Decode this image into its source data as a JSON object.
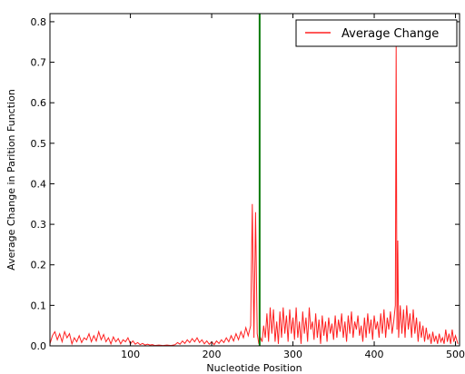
{
  "chart_data": {
    "type": "line",
    "xlabel": "Nucleotide Position",
    "ylabel": "Average Change in Parition Function",
    "xlim": [
      1,
      505
    ],
    "ylim": [
      0,
      0.82
    ],
    "xticks": [
      100,
      200,
      300,
      400,
      500
    ],
    "yticks": [
      0.0,
      0.1,
      0.2,
      0.3,
      0.4,
      0.5,
      0.6,
      0.7,
      0.8
    ],
    "xtick_labels": [
      "100",
      "200",
      "300",
      "400",
      "500"
    ],
    "ytick_labels": [
      "0.0",
      "0.1",
      "0.2",
      "0.3",
      "0.4",
      "0.5",
      "0.6",
      "0.7",
      "0.8"
    ],
    "grid": false,
    "legend": {
      "position": "top-right",
      "entries": [
        "Average Change"
      ]
    },
    "vertical_line": {
      "x": 259,
      "color": "#0a7a0a"
    },
    "series": [
      {
        "name": "Average Change",
        "color": "#ff2020",
        "points": [
          [
            1,
            0.005
          ],
          [
            4,
            0.025
          ],
          [
            7,
            0.035
          ],
          [
            10,
            0.015
          ],
          [
            13,
            0.03
          ],
          [
            16,
            0.01
          ],
          [
            19,
            0.035
          ],
          [
            22,
            0.02
          ],
          [
            25,
            0.03
          ],
          [
            28,
            0.005
          ],
          [
            31,
            0.02
          ],
          [
            34,
            0.01
          ],
          [
            37,
            0.025
          ],
          [
            40,
            0.008
          ],
          [
            43,
            0.02
          ],
          [
            46,
            0.015
          ],
          [
            49,
            0.03
          ],
          [
            52,
            0.01
          ],
          [
            55,
            0.025
          ],
          [
            58,
            0.012
          ],
          [
            61,
            0.035
          ],
          [
            64,
            0.015
          ],
          [
            67,
            0.028
          ],
          [
            70,
            0.01
          ],
          [
            73,
            0.02
          ],
          [
            76,
            0.005
          ],
          [
            79,
            0.022
          ],
          [
            82,
            0.01
          ],
          [
            85,
            0.018
          ],
          [
            88,
            0.005
          ],
          [
            91,
            0.015
          ],
          [
            94,
            0.01
          ],
          [
            97,
            0.02
          ],
          [
            100,
            0.005
          ],
          [
            103,
            0.012
          ],
          [
            106,
            0.004
          ],
          [
            109,
            0.008
          ],
          [
            112,
            0.003
          ],
          [
            115,
            0.006
          ],
          [
            118,
            0.002
          ],
          [
            121,
            0.004
          ],
          [
            124,
            0.002
          ],
          [
            127,
            0.003
          ],
          [
            130,
            0.001
          ],
          [
            135,
            0.002
          ],
          [
            140,
            0.001
          ],
          [
            145,
            0.002
          ],
          [
            150,
            0.001
          ],
          [
            155,
            0.003
          ],
          [
            158,
            0.008
          ],
          [
            161,
            0.004
          ],
          [
            164,
            0.012
          ],
          [
            167,
            0.006
          ],
          [
            170,
            0.015
          ],
          [
            173,
            0.008
          ],
          [
            176,
            0.018
          ],
          [
            179,
            0.01
          ],
          [
            182,
            0.02
          ],
          [
            185,
            0.008
          ],
          [
            188,
            0.015
          ],
          [
            191,
            0.005
          ],
          [
            194,
            0.012
          ],
          [
            197,
            0.004
          ],
          [
            200,
            0.01
          ],
          [
            203,
            0.003
          ],
          [
            206,
            0.012
          ],
          [
            209,
            0.006
          ],
          [
            212,
            0.015
          ],
          [
            215,
            0.008
          ],
          [
            218,
            0.02
          ],
          [
            221,
            0.01
          ],
          [
            224,
            0.025
          ],
          [
            227,
            0.012
          ],
          [
            230,
            0.03
          ],
          [
            233,
            0.015
          ],
          [
            236,
            0.035
          ],
          [
            239,
            0.02
          ],
          [
            242,
            0.045
          ],
          [
            245,
            0.025
          ],
          [
            248,
            0.05
          ],
          [
            250,
            0.35
          ],
          [
            252,
            0.02
          ],
          [
            254,
            0.33
          ],
          [
            256,
            0.03
          ],
          [
            258,
            0.005
          ],
          [
            260,
            0.02
          ],
          [
            262,
            0.01
          ],
          [
            264,
            0.05
          ],
          [
            266,
            0.02
          ],
          [
            268,
            0.08
          ],
          [
            270,
            0.01
          ],
          [
            272,
            0.095
          ],
          [
            274,
            0.03
          ],
          [
            276,
            0.09
          ],
          [
            278,
            0.01
          ],
          [
            280,
            0.06
          ],
          [
            282,
            0.005
          ],
          [
            284,
            0.085
          ],
          [
            286,
            0.02
          ],
          [
            288,
            0.095
          ],
          [
            290,
            0.03
          ],
          [
            292,
            0.075
          ],
          [
            294,
            0.01
          ],
          [
            296,
            0.09
          ],
          [
            298,
            0.03
          ],
          [
            300,
            0.07
          ],
          [
            302,
            0.015
          ],
          [
            304,
            0.095
          ],
          [
            306,
            0.02
          ],
          [
            308,
            0.06
          ],
          [
            310,
            0.005
          ],
          [
            312,
            0.085
          ],
          [
            314,
            0.03
          ],
          [
            316,
            0.07
          ],
          [
            318,
            0.01
          ],
          [
            320,
            0.095
          ],
          [
            322,
            0.04
          ],
          [
            324,
            0.06
          ],
          [
            326,
            0.015
          ],
          [
            328,
            0.08
          ],
          [
            330,
            0.02
          ],
          [
            332,
            0.065
          ],
          [
            334,
            0.005
          ],
          [
            336,
            0.075
          ],
          [
            338,
            0.025
          ],
          [
            340,
            0.06
          ],
          [
            342,
            0.01
          ],
          [
            344,
            0.07
          ],
          [
            346,
            0.03
          ],
          [
            348,
            0.055
          ],
          [
            350,
            0.015
          ],
          [
            352,
            0.075
          ],
          [
            354,
            0.02
          ],
          [
            356,
            0.065
          ],
          [
            358,
            0.035
          ],
          [
            360,
            0.08
          ],
          [
            362,
            0.02
          ],
          [
            364,
            0.06
          ],
          [
            366,
            0.01
          ],
          [
            368,
            0.075
          ],
          [
            370,
            0.03
          ],
          [
            372,
            0.085
          ],
          [
            374,
            0.02
          ],
          [
            376,
            0.06
          ],
          [
            378,
            0.04
          ],
          [
            380,
            0.075
          ],
          [
            382,
            0.025
          ],
          [
            384,
            0.05
          ],
          [
            386,
            0.01
          ],
          [
            388,
            0.07
          ],
          [
            390,
            0.02
          ],
          [
            392,
            0.08
          ],
          [
            394,
            0.03
          ],
          [
            396,
            0.065
          ],
          [
            398,
            0.015
          ],
          [
            400,
            0.075
          ],
          [
            402,
            0.04
          ],
          [
            404,
            0.06
          ],
          [
            406,
            0.02
          ],
          [
            408,
            0.08
          ],
          [
            410,
            0.03
          ],
          [
            412,
            0.09
          ],
          [
            414,
            0.02
          ],
          [
            416,
            0.07
          ],
          [
            418,
            0.04
          ],
          [
            420,
            0.085
          ],
          [
            422,
            0.03
          ],
          [
            424,
            0.06
          ],
          [
            426,
            0.1
          ],
          [
            427,
            0.74
          ],
          [
            428,
            0.04
          ],
          [
            429,
            0.26
          ],
          [
            430,
            0.02
          ],
          [
            432,
            0.1
          ],
          [
            434,
            0.03
          ],
          [
            436,
            0.09
          ],
          [
            438,
            0.02
          ],
          [
            440,
            0.1
          ],
          [
            442,
            0.04
          ],
          [
            444,
            0.08
          ],
          [
            446,
            0.02
          ],
          [
            448,
            0.09
          ],
          [
            450,
            0.03
          ],
          [
            452,
            0.07
          ],
          [
            454,
            0.01
          ],
          [
            456,
            0.06
          ],
          [
            458,
            0.02
          ],
          [
            460,
            0.05
          ],
          [
            462,
            0.01
          ],
          [
            464,
            0.045
          ],
          [
            466,
            0.015
          ],
          [
            468,
            0.03
          ],
          [
            470,
            0.005
          ],
          [
            472,
            0.035
          ],
          [
            474,
            0.01
          ],
          [
            476,
            0.025
          ],
          [
            478,
            0.005
          ],
          [
            480,
            0.03
          ],
          [
            482,
            0.01
          ],
          [
            484,
            0.02
          ],
          [
            486,
            0.005
          ],
          [
            488,
            0.04
          ],
          [
            490,
            0.01
          ],
          [
            492,
            0.03
          ],
          [
            494,
            0.005
          ],
          [
            496,
            0.04
          ],
          [
            498,
            0.01
          ],
          [
            500,
            0.025
          ],
          [
            503,
            0.005
          ]
        ]
      }
    ]
  }
}
